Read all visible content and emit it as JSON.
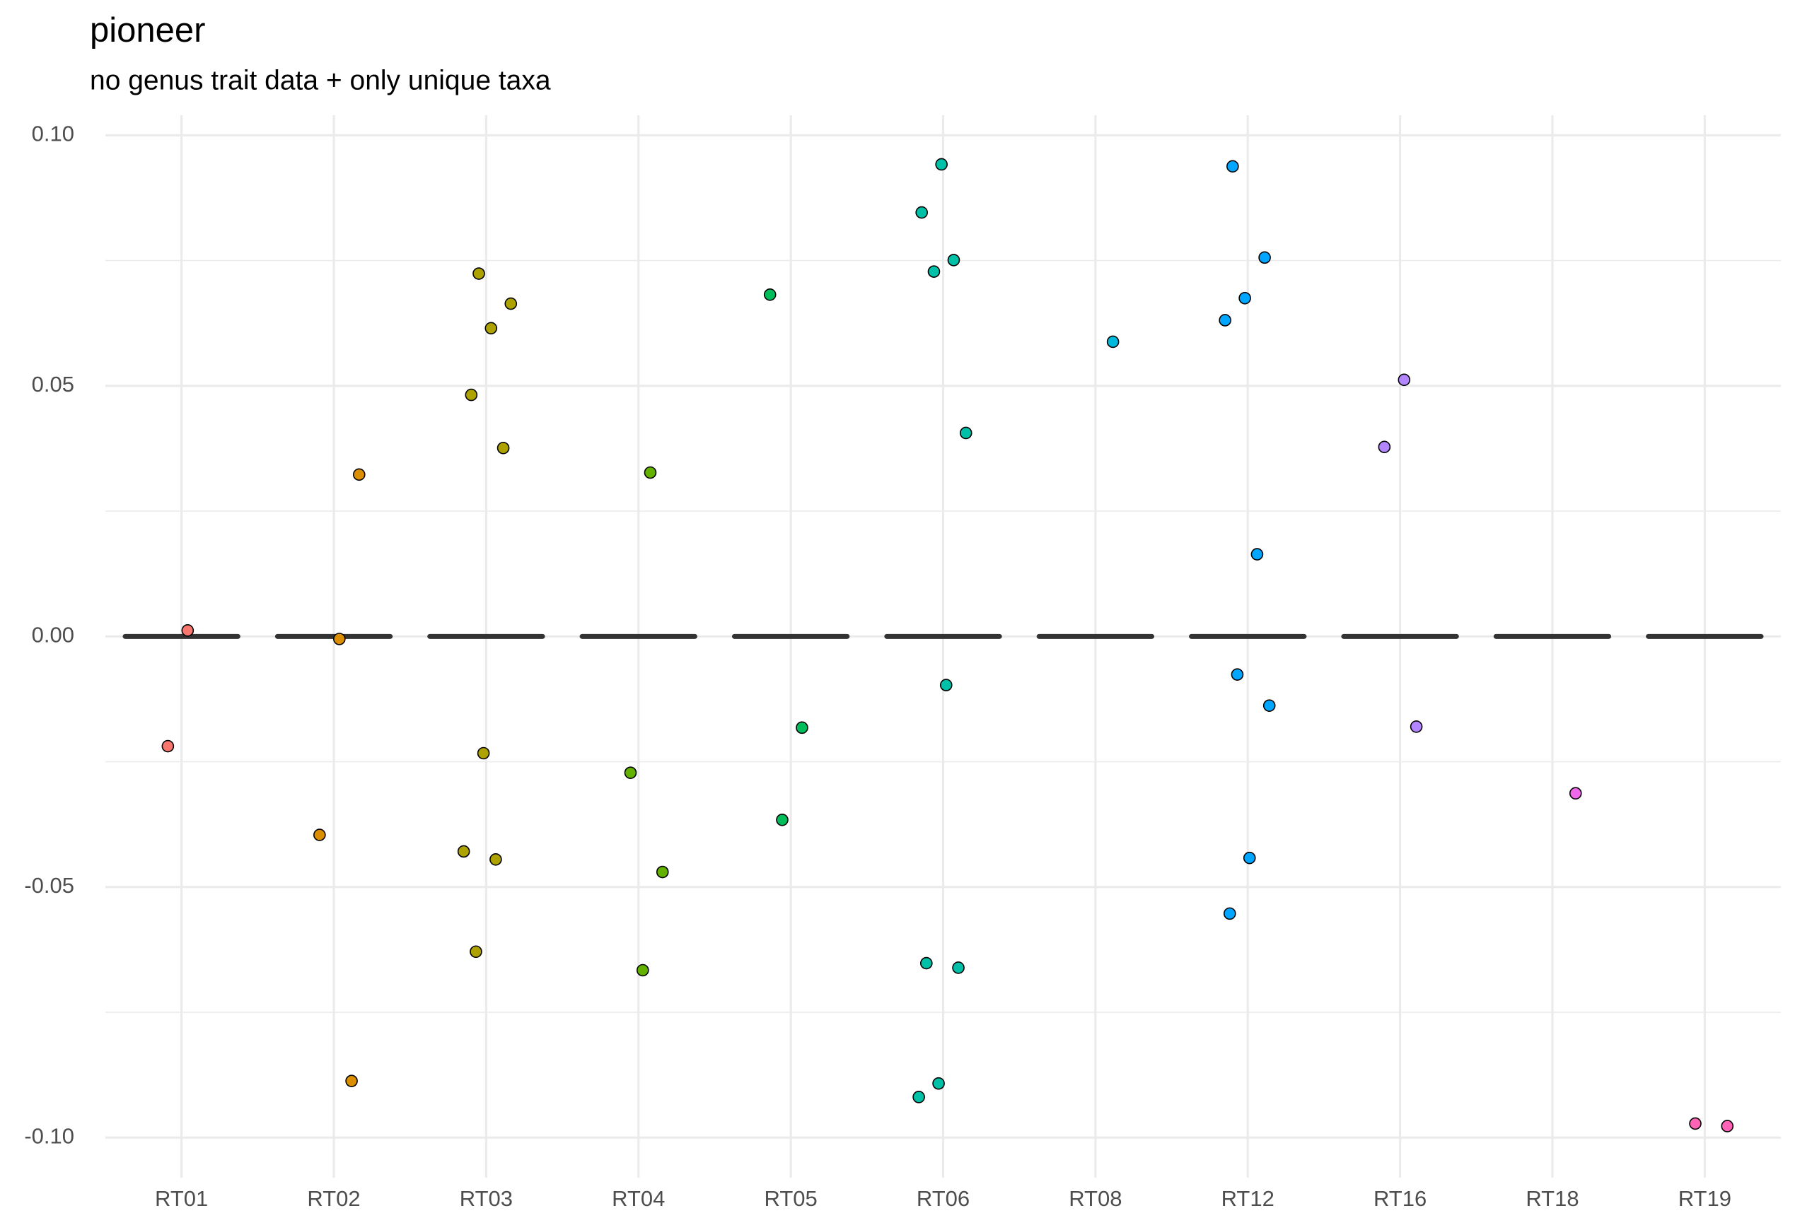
{
  "chart_data": {
    "type": "strip",
    "title": "pioneer",
    "subtitle": "no genus trait data + only unique taxa",
    "categories": [
      "RT01",
      "RT02",
      "RT03",
      "RT04",
      "RT05",
      "RT06",
      "RT08",
      "RT12",
      "RT16",
      "RT18",
      "RT19"
    ],
    "colors": [
      "#F8766D",
      "#DB8E00",
      "#AEA200",
      "#64B200",
      "#00BD5C",
      "#00C1A7",
      "#00BADE",
      "#00A6FF",
      "#B385FF",
      "#EF67EB",
      "#FF63B6"
    ],
    "medians": [
      0,
      0,
      0,
      0,
      0,
      0,
      0,
      0,
      0,
      0,
      0
    ],
    "points": [
      [
        0.0012,
        -0.0219
      ],
      [
        0.0323,
        -0.0005,
        -0.0396,
        -0.0887
      ],
      [
        0.0724,
        0.0664,
        0.0615,
        0.0482,
        0.0376,
        -0.0233,
        -0.0429,
        -0.0445,
        -0.0629
      ],
      [
        0.0327,
        -0.0272,
        -0.047,
        -0.0666
      ],
      [
        0.0682,
        -0.0182,
        -0.0366
      ],
      [
        0.0942,
        0.0846,
        0.0751,
        0.0728,
        0.0406,
        -0.0097,
        -0.0652,
        -0.0661,
        -0.0892,
        -0.0919
      ],
      [
        0.0588
      ],
      [
        0.0938,
        0.0756,
        0.0675,
        0.0631,
        0.0164,
        -0.0076,
        -0.0138,
        -0.0442,
        -0.0553
      ],
      [
        0.0512,
        0.0378,
        -0.018
      ],
      [
        -0.0313
      ],
      [
        -0.0972,
        -0.0977
      ]
    ],
    "ylim": [
      -0.108,
      0.104
    ],
    "yticks": [
      {
        "value": 0.1,
        "label": "0.10"
      },
      0.05,
      {
        "value": 0,
        "label": "0.00"
      },
      -0.05,
      {
        "value": -0.1,
        "label": "-0.10"
      }
    ],
    "grid": true
  }
}
